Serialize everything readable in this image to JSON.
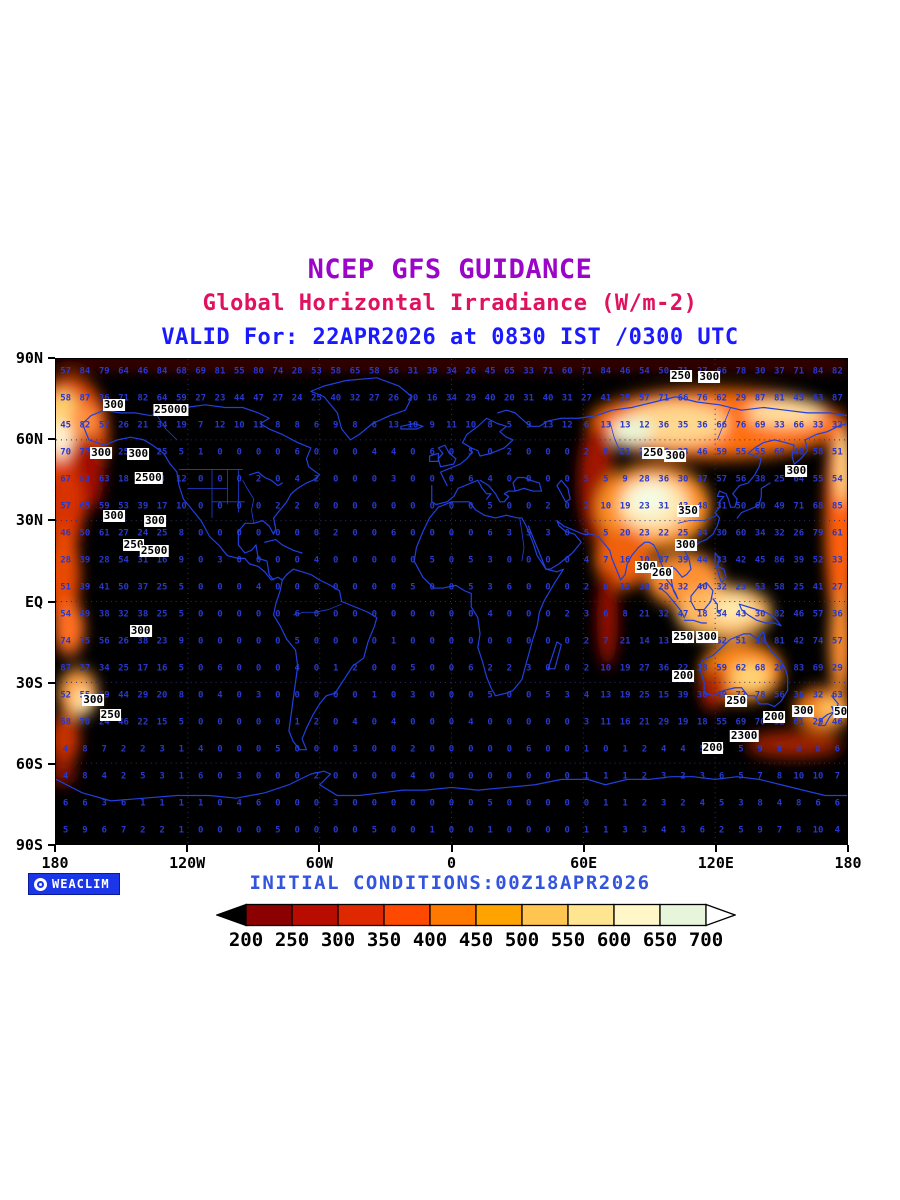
{
  "titles": {
    "line1": "NCEP GFS GUIDANCE",
    "line2": "Global Horizontal Irradiance (W/m-2)",
    "line3": "VALID For: 22APR2026 at 0830 IST /0300 UTC"
  },
  "footer": {
    "initial_conditions": "INITIAL CONDITIONS:00Z18APR2026",
    "logo_text": "WEACLIM"
  },
  "colors": {
    "title1": "#9a05c7",
    "title2": "#e0115f",
    "title3": "#1a1aff",
    "footer_text": "#3355dd",
    "coastline": "#2040e0",
    "map_background": "#000000",
    "page_background": "#ffffff",
    "logo_background": "#1b35e8",
    "grid_digits": "#2838cc"
  },
  "chart_data": {
    "type": "heatmap",
    "title": "NCEP GFS GUIDANCE",
    "subtitle": "Global Horizontal Irradiance (W/m-2)",
    "valid_time": "VALID For: 22APR2026 at 0830 IST /0300 UTC",
    "initial_conditions": "INITIAL CONDITIONS:00Z18APR2026",
    "units": "W/m-2",
    "x_axis": {
      "ticks": [
        "180",
        "120W",
        "60W",
        "0",
        "60E",
        "120E",
        "180"
      ],
      "range_deg_lon": [
        -180,
        180
      ]
    },
    "y_axis": {
      "ticks": [
        "90N",
        "60N",
        "30N",
        "EQ",
        "30S",
        "60S",
        "90S"
      ],
      "range_deg_lat": [
        -90,
        90
      ]
    },
    "grid": "dotted graticule every 60 deg lon / 30 deg lat",
    "colorbar": {
      "levels": [
        200,
        250,
        300,
        350,
        400,
        450,
        500,
        550,
        600,
        650,
        700
      ],
      "colors": [
        "#8b0000",
        "#b80c00",
        "#e02800",
        "#ff4800",
        "#ff7800",
        "#ffa300",
        "#ffc550",
        "#ffe590",
        "#fff7c8",
        "#e7f6da"
      ],
      "arrow_left_color": "#000000",
      "arrow_right_color": "#ffffff",
      "position": "bottom-center"
    },
    "contour_labels": [
      {
        "text": "300",
        "x": 7.3,
        "y": 9.4
      },
      {
        "text": "25000",
        "x": 14.5,
        "y": 10.5
      },
      {
        "text": "300",
        "x": 5.7,
        "y": 19.3
      },
      {
        "text": "300",
        "x": 10.4,
        "y": 19.5
      },
      {
        "text": "2500",
        "x": 11.7,
        "y": 24.6
      },
      {
        "text": "300",
        "x": 7.3,
        "y": 32.4
      },
      {
        "text": "300",
        "x": 12.5,
        "y": 33.3
      },
      {
        "text": "250",
        "x": 9.8,
        "y": 38.4
      },
      {
        "text": "2500",
        "x": 12.4,
        "y": 39.6
      },
      {
        "text": "300",
        "x": 10.7,
        "y": 56.1
      },
      {
        "text": "300",
        "x": 4.7,
        "y": 70.4
      },
      {
        "text": "250",
        "x": 6.9,
        "y": 73.5
      },
      {
        "text": "250",
        "x": 79.0,
        "y": 3.5
      },
      {
        "text": "300",
        "x": 82.6,
        "y": 3.7
      },
      {
        "text": "250",
        "x": 75.5,
        "y": 19.3
      },
      {
        "text": "300",
        "x": 78.3,
        "y": 20.0
      },
      {
        "text": "300",
        "x": 93.6,
        "y": 23.0
      },
      {
        "text": "350",
        "x": 79.9,
        "y": 31.4
      },
      {
        "text": "300",
        "x": 79.6,
        "y": 38.4
      },
      {
        "text": "300",
        "x": 74.6,
        "y": 42.9
      },
      {
        "text": "260",
        "x": 76.6,
        "y": 44.1
      },
      {
        "text": "250",
        "x": 79.3,
        "y": 57.3
      },
      {
        "text": "300",
        "x": 82.3,
        "y": 57.3
      },
      {
        "text": "200",
        "x": 79.3,
        "y": 65.3
      },
      {
        "text": "250",
        "x": 86.0,
        "y": 70.6
      },
      {
        "text": "200",
        "x": 90.8,
        "y": 73.9
      },
      {
        "text": "300",
        "x": 94.5,
        "y": 72.5
      },
      {
        "text": "50",
        "x": 99.2,
        "y": 72.7
      },
      {
        "text": "2300",
        "x": 87.0,
        "y": 77.8
      },
      {
        "text": "200",
        "x": 83.0,
        "y": 80.3
      }
    ]
  },
  "texture": {
    "rows": 18,
    "cols": 41,
    "seed": 7
  }
}
